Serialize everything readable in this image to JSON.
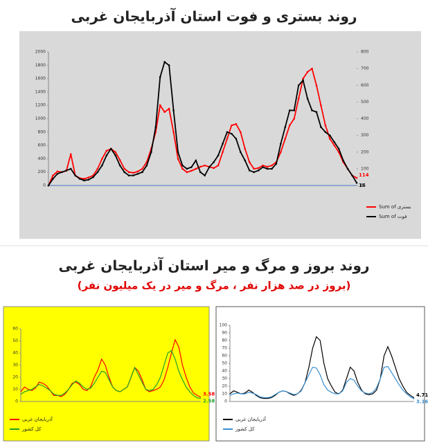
{
  "chart_data": [
    {
      "type": "line",
      "title": "روند بستری و فوت استان آذربایجان غربی",
      "categories": [
        null,
        null,
        null,
        null,
        null,
        null,
        null,
        null,
        null,
        null,
        null,
        null,
        null,
        null,
        null,
        null,
        null,
        null,
        null,
        null,
        null,
        null,
        null,
        null,
        null,
        null,
        null,
        null,
        null,
        null,
        null,
        null,
        null,
        null,
        null,
        null,
        null,
        null,
        null,
        null,
        null,
        null,
        null,
        null,
        null,
        null,
        null,
        null,
        null,
        null,
        null,
        null,
        null,
        null,
        null,
        null,
        null,
        null,
        null,
        null,
        null,
        null,
        null,
        null,
        null,
        null,
        null,
        null,
        null,
        null
      ],
      "ylim": [
        0,
        2000
      ],
      "yticks": [
        0,
        200,
        400,
        600,
        800,
        1000,
        1200,
        1400,
        1600,
        1800,
        2000
      ],
      "y2lim": [
        0,
        800
      ],
      "y2ticks": [
        0,
        100,
        200,
        300,
        400,
        500,
        600,
        700,
        800
      ],
      "series": [
        {
          "name": "Sum of بستری",
          "color": "#ff0000",
          "values": [
            0,
            150,
            210,
            200,
            220,
            470,
            150,
            110,
            100,
            120,
            150,
            250,
            400,
            520,
            550,
            500,
            380,
            250,
            200,
            190,
            210,
            250,
            350,
            550,
            800,
            1200,
            1100,
            1150,
            800,
            400,
            250,
            200,
            220,
            250,
            280,
            300,
            280,
            260,
            300,
            500,
            700,
            900,
            920,
            800,
            550,
            350,
            250,
            260,
            300,
            280,
            300,
            350,
            500,
            700,
            900,
            1000,
            1300,
            1600,
            1700,
            1750,
            1500,
            1200,
            900,
            700,
            600,
            500,
            350,
            250,
            150,
            114
          ]
        },
        {
          "name": "Sum of فوت",
          "color": "#000000",
          "axis": "y2",
          "values": [
            0,
            40,
            70,
            80,
            90,
            100,
            60,
            40,
            30,
            35,
            50,
            80,
            120,
            180,
            220,
            180,
            120,
            80,
            60,
            60,
            70,
            80,
            120,
            200,
            350,
            650,
            740,
            720,
            450,
            200,
            120,
            100,
            110,
            150,
            80,
            60,
            110,
            140,
            180,
            250,
            320,
            310,
            280,
            200,
            150,
            90,
            80,
            90,
            110,
            100,
            100,
            130,
            250,
            350,
            450,
            450,
            600,
            630,
            520,
            450,
            440,
            350,
            320,
            300,
            260,
            220,
            150,
            100,
            60,
            16
          ]
        }
      ]
    },
    {
      "type": "line",
      "title": "روند بروز و مرگ و میر استان آذربایجان غربی",
      "subtitle": "(بروز در صد هزار نفر ، مرگ و میر در یک میلیون نفر)",
      "categories": [
        null,
        null,
        null,
        null,
        null,
        null,
        null,
        null,
        null,
        null,
        null,
        null,
        null,
        null,
        null,
        null,
        null,
        null,
        null,
        null,
        null,
        null,
        null,
        null,
        null,
        null,
        null,
        null,
        null,
        null,
        null,
        null,
        null,
        null,
        null,
        null,
        null,
        null,
        null,
        null,
        null,
        null,
        null,
        null,
        null,
        null,
        null,
        null,
        null,
        null
      ],
      "ylim": [
        0,
        60
      ],
      "yticks": [
        0,
        10,
        20,
        30,
        40,
        50,
        60
      ],
      "series": [
        {
          "name": "آذربایجان غربی",
          "color": "#ff0000",
          "values": [
            8,
            12,
            10,
            9,
            11,
            16,
            15,
            13,
            9,
            5,
            5,
            4,
            6,
            10,
            15,
            16,
            14,
            10,
            9,
            12,
            20,
            26,
            35,
            30,
            20,
            12,
            9,
            8,
            10,
            12,
            20,
            28,
            25,
            18,
            10,
            8,
            9,
            10,
            12,
            18,
            28,
            40,
            51,
            45,
            30,
            20,
            12,
            7,
            5,
            3.58
          ]
        },
        {
          "name": "کل کشور",
          "color": "#22a02a",
          "values": [
            6,
            8,
            9,
            10,
            12,
            14,
            13,
            11,
            9,
            6,
            5,
            5,
            7,
            10,
            14,
            17,
            15,
            12,
            10,
            11,
            15,
            20,
            25,
            24,
            18,
            12,
            9,
            8,
            10,
            12,
            20,
            28,
            22,
            16,
            10,
            9,
            10,
            14,
            20,
            30,
            40,
            42,
            35,
            25,
            18,
            12,
            8,
            5,
            3,
            2.58
          ]
        }
      ]
    },
    {
      "type": "line",
      "categories": [
        null,
        null,
        null,
        null,
        null,
        null,
        null,
        null,
        null,
        null,
        null,
        null,
        null,
        null,
        null,
        null,
        null,
        null,
        null,
        null,
        null,
        null,
        null,
        null,
        null,
        null,
        null,
        null,
        null,
        null,
        null,
        null,
        null,
        null,
        null,
        null,
        null,
        null,
        null,
        null,
        null,
        null,
        null,
        null,
        null,
        null,
        null,
        null,
        null,
        null
      ],
      "ylim": [
        0,
        100
      ],
      "yticks": [
        0,
        10,
        20,
        30,
        40,
        50,
        60,
        70,
        80,
        90,
        100
      ],
      "series": [
        {
          "name": "آذربایجان غربی",
          "color": "#000000",
          "values": [
            10,
            14,
            12,
            10,
            11,
            15,
            12,
            8,
            5,
            4,
            4,
            5,
            8,
            12,
            14,
            13,
            10,
            8,
            10,
            15,
            25,
            45,
            70,
            85,
            80,
            50,
            30,
            20,
            12,
            10,
            15,
            30,
            45,
            40,
            25,
            15,
            10,
            9,
            10,
            15,
            30,
            60,
            72,
            60,
            45,
            30,
            20,
            12,
            8,
            4.71
          ]
        },
        {
          "name": "کل کشور",
          "color": "#3a8fd0",
          "values": [
            8,
            10,
            11,
            10,
            10,
            12,
            11,
            9,
            6,
            5,
            5,
            6,
            9,
            12,
            14,
            13,
            11,
            9,
            10,
            14,
            25,
            35,
            45,
            44,
            35,
            22,
            15,
            12,
            10,
            10,
            14,
            25,
            30,
            28,
            20,
            14,
            11,
            10,
            12,
            18,
            30,
            45,
            46,
            38,
            30,
            22,
            15,
            10,
            6,
            3.16
          ]
        }
      ]
    }
  ]
}
